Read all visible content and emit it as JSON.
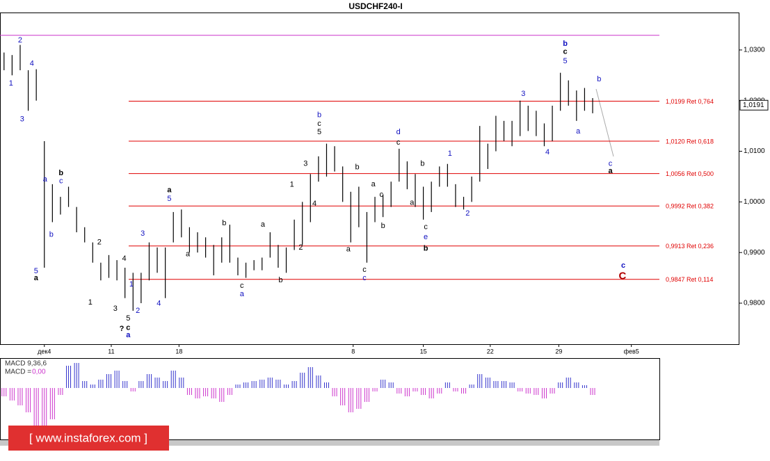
{
  "chart_data": {
    "type": "ohlc",
    "title": "USDCHF240-I",
    "high": [
      1.0295,
      1.029,
      1.031,
      1.026,
      1.0262,
      1.012,
      1.0035,
      1.001,
      1.003,
      0.999,
      0.995,
      0.992,
      0.988,
      0.9895,
      0.9885,
      0.987,
      0.986,
      0.986,
      0.992,
      0.991,
      0.991,
      0.998,
      0.9985,
      0.995,
      0.994,
      0.993,
      0.9915,
      0.993,
      0.9955,
      0.989,
      0.988,
      0.9885,
      0.989,
      0.994,
      0.9915,
      0.991,
      0.9965,
      1.0,
      1.0055,
      1.009,
      1.0115,
      1.011,
      1.007,
      1.002,
      1.003,
      0.998,
      1.001,
      1.0015,
      1.004,
      1.0105,
      1.008,
      1.0055,
      1.003,
      1.004,
      1.007,
      1.0075,
      1.0035,
      1.001,
      1.005,
      1.015,
      1.0115,
      1.017,
      1.016,
      1.016,
      1.02,
      1.019,
      1.018,
      1.0155,
      1.019,
      1.0255,
      1.024,
      1.022,
      1.0225,
      1.0205
    ],
    "low": [
      1.026,
      1.025,
      1.026,
      1.018,
      1.02,
      0.987,
      0.996,
      0.9975,
      0.999,
      0.994,
      0.992,
      0.988,
      0.9845,
      0.985,
      0.9845,
      0.981,
      0.9785,
      0.98,
      0.9845,
      0.986,
      0.981,
      0.992,
      0.993,
      0.99,
      0.99,
      0.989,
      0.9855,
      0.988,
      0.988,
      0.9855,
      0.985,
      0.9865,
      0.9865,
      0.989,
      0.987,
      0.986,
      0.9905,
      0.9915,
      0.996,
      1.004,
      1.005,
      1.006,
      1.0,
      0.992,
      0.995,
      0.988,
      0.996,
      0.997,
      0.999,
      1.004,
      1.0025,
      0.999,
      0.9965,
      0.998,
      1.003,
      1.003,
      0.999,
      0.9985,
      1.0,
      1.004,
      1.0065,
      1.01,
      1.012,
      1.011,
      1.013,
      1.014,
      1.013,
      1.011,
      1.012,
      1.018,
      1.019,
      1.016,
      1.018,
      1.0175
    ],
    "xlim": [
      -0.5,
      91.2
    ],
    "xticks": [
      {
        "value": 5,
        "label": "дек4"
      },
      {
        "value": 13.3,
        "label": "11"
      },
      {
        "value": 21.7,
        "label": "18"
      },
      {
        "value": 43.3,
        "label": "8"
      },
      {
        "value": 52,
        "label": "15"
      },
      {
        "value": 60.3,
        "label": "22"
      },
      {
        "value": 68.8,
        "label": "29"
      },
      {
        "value": 77.8,
        "label": "фев5"
      }
    ],
    "ylim": [
      0.9719,
      1.0374
    ],
    "yticks": [
      {
        "value": 1.03,
        "label": "1,0300"
      },
      {
        "value": 1.02,
        "label": "1,0200"
      },
      {
        "value": 1.01,
        "label": "1,0100"
      },
      {
        "value": 1.0,
        "label": "1,0000"
      },
      {
        "value": 0.99,
        "label": "0,9900"
      },
      {
        "value": 0.98,
        "label": "0,9800"
      }
    ],
    "levels": [
      {
        "value": 1.0199,
        "label": "1,0199 Ret 0,764"
      },
      {
        "value": 1.012,
        "label": "1,0120 Ret 0,618"
      },
      {
        "value": 1.0056,
        "label": "1,0056 Ret 0,500"
      },
      {
        "value": 0.9992,
        "label": "0,9992 Ret 0,382"
      },
      {
        "value": 0.9913,
        "label": "0,9913 Ret 0,236"
      },
      {
        "value": 0.9847,
        "label": "0,9847 Ret 0,114"
      }
    ],
    "level_color": "#e00000",
    "upper_line": {
      "value": 1.0329,
      "color": "#cc33cc"
    },
    "last_price": {
      "value": 1.0191,
      "label": "1,0191"
    },
    "annotations": [
      {
        "text": "2",
        "x": 2.0,
        "y": 1.0319,
        "color": "#1010c0"
      },
      {
        "text": "4",
        "x": 3.45,
        "y": 1.0273,
        "color": "#1010c0"
      },
      {
        "text": "1",
        "x": 0.86,
        "y": 1.0234,
        "color": "#1010c0"
      },
      {
        "text": "3",
        "x": 2.24,
        "y": 1.0163,
        "color": "#1010c0"
      },
      {
        "text": "5",
        "x": 3.97,
        "y": 0.9863,
        "color": "#1010c0"
      },
      {
        "text": "a",
        "x": 3.97,
        "y": 0.9849,
        "color": "#000000",
        "bold": true
      },
      {
        "text": "a",
        "x": 5.09,
        "y": 1.0044,
        "color": "#1010c0"
      },
      {
        "text": "b",
        "x": 7.07,
        "y": 1.0057,
        "color": "#000000",
        "bold": true
      },
      {
        "text": "c",
        "x": 7.07,
        "y": 1.0041,
        "color": "#1010c0"
      },
      {
        "text": "b",
        "x": 5.87,
        "y": 0.9935,
        "color": "#1010c0"
      },
      {
        "text": "2",
        "x": 11.82,
        "y": 0.992,
        "color": "#000000"
      },
      {
        "text": "1",
        "x": 10.7,
        "y": 0.9801,
        "color": "#000000"
      },
      {
        "text": "3",
        "x": 13.8,
        "y": 0.9789,
        "color": "#000000"
      },
      {
        "text": "4",
        "x": 14.9,
        "y": 0.9888,
        "color": "#000000"
      },
      {
        "text": "5",
        "x": 15.4,
        "y": 0.977,
        "color": "#000000"
      },
      {
        "text": "1",
        "x": 15.8,
        "y": 0.9837,
        "color": "#1010c0"
      },
      {
        "text": "2",
        "x": 16.6,
        "y": 0.9785,
        "color": "#1010c0"
      },
      {
        "text": "3",
        "x": 17.2,
        "y": 0.9937,
        "color": "#1010c0"
      },
      {
        "text": "4",
        "x": 19.2,
        "y": 0.9799,
        "color": "#1010c0"
      },
      {
        "text": "?",
        "x": 14.6,
        "y": 0.9749,
        "color": "#000000",
        "bold": true
      },
      {
        "text": "c",
        "x": 15.4,
        "y": 0.9751,
        "color": "#000000",
        "bold": true
      },
      {
        "text": "a",
        "x": 15.4,
        "y": 0.9737,
        "color": "#1010c0",
        "bold": true
      },
      {
        "text": "a",
        "x": 20.5,
        "y": 1.0023,
        "color": "#000000",
        "bold": true
      },
      {
        "text": "5",
        "x": 20.5,
        "y": 1.0006,
        "color": "#1010c0"
      },
      {
        "text": "b",
        "x": 27.3,
        "y": 0.9958,
        "color": "#000000"
      },
      {
        "text": "a",
        "x": 22.8,
        "y": 0.9897,
        "color": "#000000"
      },
      {
        "text": "c",
        "x": 29.5,
        "y": 0.9834,
        "color": "#000000"
      },
      {
        "text": "a",
        "x": 29.5,
        "y": 0.9818,
        "color": "#1010c0"
      },
      {
        "text": "a",
        "x": 32.1,
        "y": 0.9955,
        "color": "#000000"
      },
      {
        "text": "b",
        "x": 34.3,
        "y": 0.9845,
        "color": "#000000"
      },
      {
        "text": "1",
        "x": 35.7,
        "y": 1.0034,
        "color": "#000000"
      },
      {
        "text": "2",
        "x": 36.8,
        "y": 0.991,
        "color": "#000000"
      },
      {
        "text": "3",
        "x": 37.4,
        "y": 1.0075,
        "color": "#000000"
      },
      {
        "text": "4",
        "x": 38.5,
        "y": 0.9996,
        "color": "#000000"
      },
      {
        "text": "b",
        "x": 39.1,
        "y": 1.0171,
        "color": "#1010c0"
      },
      {
        "text": "c",
        "x": 39.1,
        "y": 1.0154,
        "color": "#000000"
      },
      {
        "text": "5",
        "x": 39.1,
        "y": 1.0138,
        "color": "#000000"
      },
      {
        "text": "a",
        "x": 42.7,
        "y": 0.9906,
        "color": "#000000"
      },
      {
        "text": "b",
        "x": 43.8,
        "y": 1.0068,
        "color": "#000000"
      },
      {
        "text": "c",
        "x": 44.7,
        "y": 0.9866,
        "color": "#000000"
      },
      {
        "text": "c",
        "x": 44.7,
        "y": 0.9849,
        "color": "#1010c0"
      },
      {
        "text": "a",
        "x": 45.8,
        "y": 1.0035,
        "color": "#000000"
      },
      {
        "text": "c",
        "x": 46.8,
        "y": 1.0014,
        "color": "#000000"
      },
      {
        "text": "b",
        "x": 47.0,
        "y": 0.9952,
        "color": "#000000"
      },
      {
        "text": "d",
        "x": 48.9,
        "y": 1.0138,
        "color": "#1010c0"
      },
      {
        "text": "c",
        "x": 48.9,
        "y": 1.0117,
        "color": "#000000"
      },
      {
        "text": "b",
        "x": 51.9,
        "y": 1.0075,
        "color": "#000000"
      },
      {
        "text": "a",
        "x": 50.6,
        "y": 0.9998,
        "color": "#000000"
      },
      {
        "text": "c",
        "x": 52.3,
        "y": 0.995,
        "color": "#000000"
      },
      {
        "text": "e",
        "x": 52.3,
        "y": 0.993,
        "color": "#1010c0"
      },
      {
        "text": "b",
        "x": 52.3,
        "y": 0.9908,
        "color": "#000000",
        "bold": true
      },
      {
        "text": "1",
        "x": 55.3,
        "y": 1.0095,
        "color": "#1010c0"
      },
      {
        "text": "2",
        "x": 57.5,
        "y": 0.9977,
        "color": "#1010c0"
      },
      {
        "text": "3",
        "x": 64.4,
        "y": 1.0213,
        "color": "#1010c0"
      },
      {
        "text": "4",
        "x": 67.4,
        "y": 1.0098,
        "color": "#1010c0"
      },
      {
        "text": "a",
        "x": 71.2,
        "y": 1.0139,
        "color": "#1010c0"
      },
      {
        "text": "b",
        "x": 69.6,
        "y": 1.0312,
        "color": "#1010c0",
        "bold": true
      },
      {
        "text": "c",
        "x": 69.6,
        "y": 1.0296,
        "color": "#000000",
        "bold": true
      },
      {
        "text": "5",
        "x": 69.6,
        "y": 1.0278,
        "color": "#1010c0"
      },
      {
        "text": "b",
        "x": 73.8,
        "y": 1.0242,
        "color": "#1010c0"
      },
      {
        "text": "c",
        "x": 75.2,
        "y": 1.0075,
        "color": "#1010c0"
      },
      {
        "text": "a",
        "x": 75.2,
        "y": 1.0061,
        "color": "#000000",
        "bold": true
      },
      {
        "text": "c",
        "x": 76.8,
        "y": 0.9874,
        "color": "#1010c0",
        "bold": true
      },
      {
        "text": "C",
        "x": 76.7,
        "y": 0.9853,
        "color": "#b00000",
        "bold": true,
        "big": true
      }
    ],
    "indicator": {
      "type": "histogram",
      "name": "MACD 9,36,6",
      "value_name": "MACD =",
      "value": 0,
      "value_label": "0,00",
      "ylim": [
        -0.0074,
        0.0042
      ],
      "color_up": "#3333cc",
      "color_down": "#cc33cc",
      "values": [
        -0.0012,
        -0.0018,
        -0.0025,
        -0.0035,
        -0.0055,
        -0.0062,
        -0.0045,
        -0.001,
        0.0032,
        0.0036,
        0.001,
        0.0005,
        0.0012,
        0.002,
        0.0025,
        0.001,
        -0.0005,
        0.001,
        0.002,
        0.0015,
        0.001,
        0.0025,
        0.0015,
        -0.001,
        -0.0015,
        -0.0012,
        -0.0015,
        -0.002,
        -0.001,
        0.0005,
        0.0008,
        0.001,
        0.0012,
        0.0015,
        0.0012,
        0.0005,
        0.001,
        0.0022,
        0.003,
        0.0018,
        0.0008,
        -0.0012,
        -0.0025,
        -0.0035,
        -0.003,
        -0.002,
        -0.0005,
        0.0012,
        0.0008,
        -0.0008,
        -0.0012,
        -0.0005,
        -0.001,
        -0.0015,
        -0.0008,
        0.0008,
        -0.0005,
        -0.0008,
        0.0005,
        0.002,
        0.0015,
        0.001,
        0.001,
        0.0008,
        -0.0005,
        -0.0008,
        -0.001,
        -0.0015,
        -0.0008,
        0.0008,
        0.0015,
        0.0008,
        0.0004,
        -0.001
      ]
    }
  },
  "watermark": "[ www.instaforex.com ]"
}
